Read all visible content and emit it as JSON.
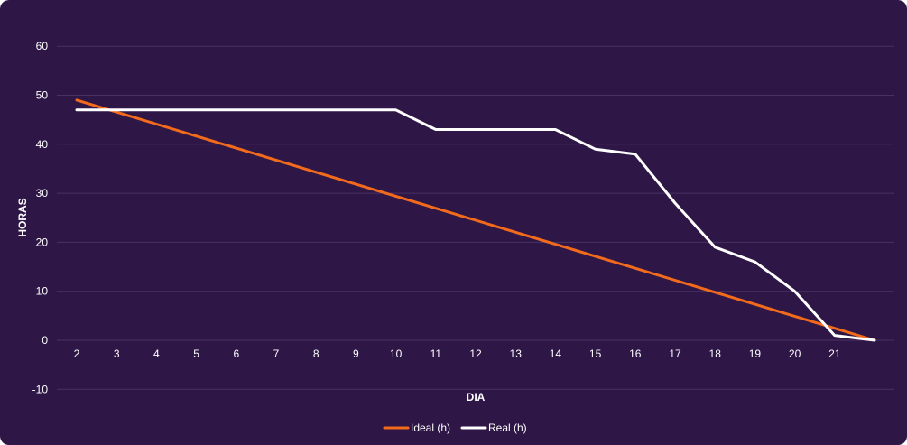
{
  "chart_data": {
    "type": "line",
    "xlabel": "DIA",
    "ylabel": "HORAS",
    "ylim": [
      -10,
      60
    ],
    "yticks": [
      -10,
      0,
      10,
      20,
      30,
      40,
      50,
      60
    ],
    "x_tick_labels": [
      "2",
      "3",
      "4",
      "5",
      "6",
      "7",
      "8",
      "9",
      "10",
      "11",
      "12",
      "13",
      "14",
      "15",
      "16",
      "17",
      "18",
      "19",
      "20",
      "21"
    ],
    "x_count": 21,
    "grid": "horizontal",
    "legend_position": "bottom-center",
    "series": [
      {
        "name": "Ideal (h)",
        "color": "#f26b1d",
        "values": [
          49,
          46.55,
          44.1,
          41.65,
          39.2,
          36.75,
          34.3,
          31.85,
          29.4,
          26.95,
          24.5,
          22.05,
          19.6,
          17.15,
          14.7,
          12.25,
          9.8,
          7.35,
          4.9,
          2.45,
          0
        ]
      },
      {
        "name": "Real (h)",
        "color": "#ffffff",
        "values": [
          47,
          47,
          47,
          47,
          47,
          47,
          47,
          47,
          47,
          43,
          43,
          43,
          43,
          39,
          38,
          28,
          19,
          16,
          10,
          1,
          0
        ]
      }
    ]
  }
}
